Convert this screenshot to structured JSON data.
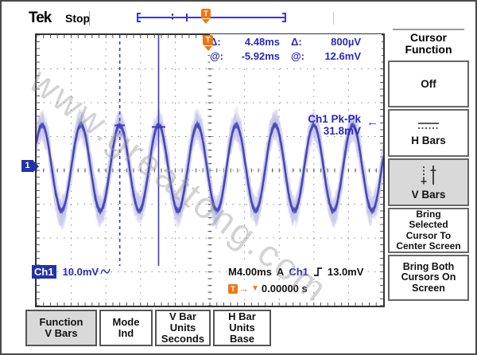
{
  "header": {
    "logo": "Tek",
    "status": "Stop"
  },
  "cursor_readout": {
    "delta_label": "Δ:",
    "delta_time": "4.48ms",
    "delta_label2": "Δ:",
    "delta_volt": "800µV",
    "at_label": "@:",
    "at_time": "-5.92ms",
    "at_label2": "@:",
    "at_volt": "12.6mV"
  },
  "measurement": {
    "line1": "Ch1 Pk-Pk",
    "line2": "31.8mV",
    "arrow": "←"
  },
  "channel_marker": {
    "label": "1"
  },
  "bottom_readout": {
    "ch_label": "Ch1",
    "ch_scale": "10.0mV",
    "timebase": "M4.00ms",
    "acq_mode": "A",
    "trig_source": "Ch1",
    "trig_level": "13.0mV",
    "trig_pos_label": "T",
    "trig_pos_arrow": "→",
    "trig_pos_tri": "▼",
    "trig_pos_value": "0.00000 s"
  },
  "sidebar": {
    "title_line1": "Cursor",
    "title_line2": "Function",
    "off_label": "Off",
    "hbars_label": "H Bars",
    "vbars_label": "V Bars",
    "bring_selected": {
      "l1": "Bring",
      "l2": "Selected",
      "l3": "Cursor To",
      "l4": "Center Screen"
    },
    "bring_both": {
      "l1": "Bring Both",
      "l2": "Cursors On",
      "l3": "Screen"
    }
  },
  "bottom_menu": [
    {
      "line1": "Function",
      "line2": "V Bars",
      "line3": "",
      "selected": true
    },
    {
      "line1": "Mode",
      "line2": "Ind",
      "line3": "",
      "selected": false
    },
    {
      "line1": "V Bar",
      "line2": "Units",
      "line3": "Seconds",
      "selected": false
    },
    {
      "line1": "H Bar",
      "line2": "Units",
      "line3": "Base",
      "selected": false
    }
  ],
  "watermark": "www.greattong.com",
  "colors": {
    "readout_blue": "#2a2ab8",
    "trace_core": "#4848b8",
    "trace_fuzz": "#c8c8ec",
    "cursor_blue": "#3a3ac8",
    "trigger_orange": "#ee7711",
    "grid_gray": "#8a8a8a",
    "selected_bg": "#d9d9d9"
  },
  "chart_data": {
    "type": "line",
    "title": "Oscilloscope Ch1 trace (noisy sine)",
    "channel": "Ch1",
    "volts_per_div_mV": 10.0,
    "time_per_div_ms": 4.0,
    "divisions": {
      "x": 10,
      "y": 8
    },
    "ch1_pk_pk_mV": 31.8,
    "cursor_delta_ms": 4.48,
    "cursor_delta_uV": 800,
    "cursor_at_ms": -5.92,
    "cursor_at_mV": 12.6,
    "trigger_level_mV": 13.0,
    "trigger_position_s": 0.0,
    "signal": {
      "period_ms": 4.48,
      "amplitude_mV_pp_core": 25.4,
      "noise_mV_pp": 6.4,
      "channel_offset_div_from_center": 0.07
    }
  }
}
